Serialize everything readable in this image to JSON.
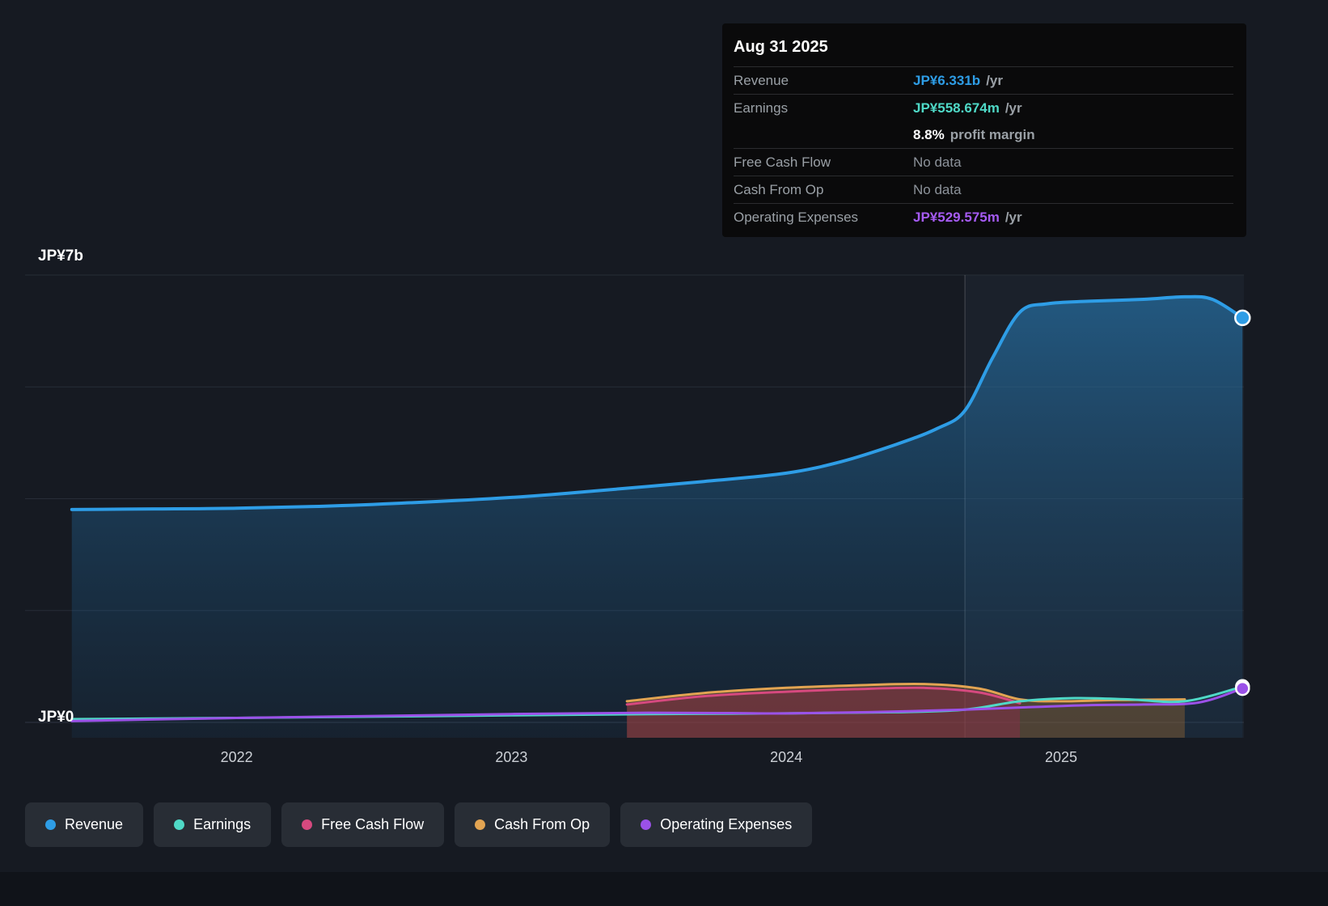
{
  "colors": {
    "background": "#161a22",
    "revenue": "#2e9de6",
    "earnings": "#4fd9c7",
    "free_cash_flow": "#d6497f",
    "cash_from_op": "#e2a452",
    "operating_expenses": "#9b51e8"
  },
  "tooltip": {
    "date": "Aug 31 2025",
    "rows": [
      {
        "key": "revenue",
        "label": "Revenue",
        "value": "JP¥6.331b",
        "suffix": "/yr",
        "value_color": "#2e9de6",
        "muted": false,
        "separator": true
      },
      {
        "key": "earnings",
        "label": "Earnings",
        "value": "JP¥558.674m",
        "suffix": "/yr",
        "value_color": "#4fd9c7",
        "muted": false,
        "separator": true
      },
      {
        "key": "profit-margin",
        "label": "",
        "value": "8.8%",
        "suffix": "profit margin",
        "value_color": "#ffffff",
        "muted": false,
        "separator": false
      },
      {
        "key": "free-cash-flow",
        "label": "Free Cash Flow",
        "value": "No data",
        "suffix": "",
        "value_color": "#8d939b",
        "muted": true,
        "separator": true
      },
      {
        "key": "cash-from-op",
        "label": "Cash From Op",
        "value": "No data",
        "suffix": "",
        "value_color": "#8d939b",
        "muted": true,
        "separator": true
      },
      {
        "key": "operating-expenses",
        "label": "Operating Expenses",
        "value": "JP¥529.575m",
        "suffix": "/yr",
        "value_color": "#a55bf2",
        "muted": false,
        "separator": true
      }
    ]
  },
  "chart_data": {
    "type": "area",
    "unit": "JP¥ billions per year",
    "y_axis": {
      "top_label": "JP¥7b",
      "bottom_label": "JP¥0",
      "min": 0,
      "max": 7,
      "gridlines": [
        0,
        1.75,
        3.5,
        5.25,
        7
      ]
    },
    "x_axis": {
      "range": [
        2021.23,
        2025.665
      ],
      "ticks": [
        {
          "label": "2022",
          "x": 2022
        },
        {
          "label": "2023",
          "x": 2023
        },
        {
          "label": "2024",
          "x": 2024
        },
        {
          "label": "2025",
          "x": 2025
        }
      ]
    },
    "divider_x": 2024.65,
    "series": [
      {
        "name": "Revenue",
        "color": "#2e9de6",
        "stroke_width": 4,
        "fill": true,
        "fill_gradient": true,
        "end_marker": true,
        "points": [
          [
            2021.4,
            3.33
          ],
          [
            2021.7,
            3.34
          ],
          [
            2022.0,
            3.35
          ],
          [
            2022.3,
            3.38
          ],
          [
            2022.6,
            3.43
          ],
          [
            2023.0,
            3.52
          ],
          [
            2023.3,
            3.62
          ],
          [
            2023.7,
            3.77
          ],
          [
            2024.0,
            3.9
          ],
          [
            2024.2,
            4.08
          ],
          [
            2024.4,
            4.35
          ],
          [
            2024.55,
            4.6
          ],
          [
            2024.65,
            4.88
          ],
          [
            2024.75,
            5.7
          ],
          [
            2024.85,
            6.42
          ],
          [
            2024.95,
            6.55
          ],
          [
            2025.1,
            6.59
          ],
          [
            2025.3,
            6.62
          ],
          [
            2025.45,
            6.66
          ],
          [
            2025.55,
            6.62
          ],
          [
            2025.66,
            6.331
          ]
        ]
      },
      {
        "name": "Cash From Op",
        "color": "#e2a452",
        "stroke_width": 3,
        "fill": true,
        "fill_color": "#9c6a33",
        "fill_opacity": 0.4,
        "end_marker": false,
        "points": [
          [
            2023.42,
            0.33
          ],
          [
            2023.7,
            0.46
          ],
          [
            2024.0,
            0.54
          ],
          [
            2024.25,
            0.58
          ],
          [
            2024.5,
            0.6
          ],
          [
            2024.7,
            0.53
          ],
          [
            2024.85,
            0.36
          ],
          [
            2025.0,
            0.33
          ],
          [
            2025.2,
            0.35
          ],
          [
            2025.45,
            0.36
          ]
        ]
      },
      {
        "name": "Free Cash Flow",
        "color": "#d6497f",
        "stroke_width": 3,
        "fill": true,
        "fill_color": "#8e2b4a",
        "fill_opacity": 0.45,
        "end_marker": false,
        "points": [
          [
            2023.42,
            0.28
          ],
          [
            2023.7,
            0.41
          ],
          [
            2024.0,
            0.48
          ],
          [
            2024.25,
            0.52
          ],
          [
            2024.5,
            0.54
          ],
          [
            2024.7,
            0.47
          ],
          [
            2024.85,
            0.3
          ]
        ]
      },
      {
        "name": "Earnings",
        "color": "#4fd9c7",
        "stroke_width": 3,
        "fill": false,
        "end_marker": true,
        "points": [
          [
            2021.4,
            0.05
          ],
          [
            2022.0,
            0.07
          ],
          [
            2022.5,
            0.09
          ],
          [
            2023.0,
            0.11
          ],
          [
            2023.5,
            0.13
          ],
          [
            2024.0,
            0.14
          ],
          [
            2024.4,
            0.16
          ],
          [
            2024.65,
            0.2
          ],
          [
            2024.85,
            0.33
          ],
          [
            2025.05,
            0.38
          ],
          [
            2025.25,
            0.36
          ],
          [
            2025.45,
            0.33
          ],
          [
            2025.66,
            0.559
          ]
        ]
      },
      {
        "name": "Operating Expenses",
        "color": "#9b51e8",
        "stroke_width": 3,
        "fill": false,
        "end_marker": true,
        "points": [
          [
            2021.4,
            0.02
          ],
          [
            2022.0,
            0.07
          ],
          [
            2022.5,
            0.1
          ],
          [
            2023.0,
            0.13
          ],
          [
            2023.5,
            0.15
          ],
          [
            2023.8,
            0.145
          ],
          [
            2024.0,
            0.14
          ],
          [
            2024.3,
            0.16
          ],
          [
            2024.65,
            0.2
          ],
          [
            2024.9,
            0.24
          ],
          [
            2025.1,
            0.27
          ],
          [
            2025.3,
            0.28
          ],
          [
            2025.5,
            0.31
          ],
          [
            2025.66,
            0.53
          ]
        ]
      }
    ]
  },
  "legend": {
    "items": [
      {
        "label": "Revenue",
        "color": "#2e9de6"
      },
      {
        "label": "Earnings",
        "color": "#4fd9c7"
      },
      {
        "label": "Free Cash Flow",
        "color": "#d6497f"
      },
      {
        "label": "Cash From Op",
        "color": "#e2a452"
      },
      {
        "label": "Operating Expenses",
        "color": "#9b51e8"
      }
    ]
  }
}
